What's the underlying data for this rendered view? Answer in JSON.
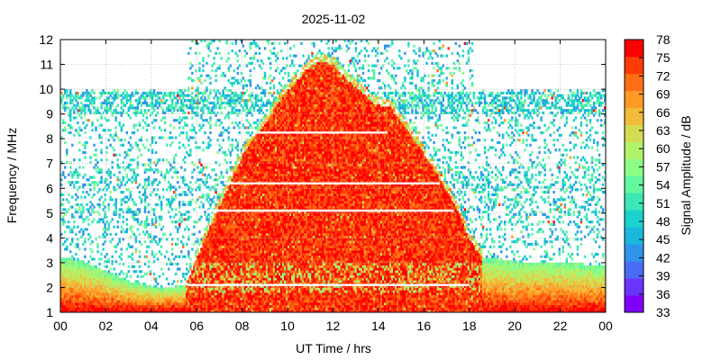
{
  "chart_data": {
    "type": "heatmap",
    "title": "2025-11-02",
    "xlabel": "UT Time / hrs",
    "ylabel": "Frequency / MHz",
    "colorbar_label": "Signal Amplitude / dB",
    "xlim": [
      0,
      24
    ],
    "ylim": [
      1,
      12
    ],
    "x_ticks": [
      "00",
      "02",
      "04",
      "06",
      "08",
      "10",
      "12",
      "14",
      "16",
      "18",
      "20",
      "22",
      "00"
    ],
    "y_ticks": [
      1,
      2,
      3,
      4,
      5,
      6,
      7,
      8,
      9,
      10,
      11,
      12
    ],
    "colorbar_ticks": [
      33,
      36,
      39,
      42,
      45,
      48,
      51,
      54,
      57,
      60,
      63,
      66,
      69,
      72,
      75,
      78
    ],
    "colorbar_range": [
      33,
      78
    ],
    "colors": [
      "#8000ff",
      "#6a34fc",
      "#4a6bf3",
      "#2f94ea",
      "#19b9dd",
      "#1ad3cc",
      "#3de8b7",
      "#63f7a0",
      "#8cfe85",
      "#b2f26b",
      "#d4dc52",
      "#f2bc3a",
      "#ff9a25",
      "#ff6e14",
      "#ff3b07",
      "#ff0000"
    ],
    "grid": true,
    "series": [
      {
        "name": "",
        "description_free": true,
        "daytime_region_upper_freq_mhz": [
          [
            5.5,
            2.0
          ],
          [
            6.0,
            3.2
          ],
          [
            6.5,
            4.3
          ],
          [
            7.0,
            5.3
          ],
          [
            7.5,
            6.3
          ],
          [
            8.0,
            7.3
          ],
          [
            8.5,
            8.0
          ],
          [
            9.0,
            8.6
          ],
          [
            9.5,
            9.3
          ],
          [
            10.0,
            9.9
          ],
          [
            10.5,
            10.4
          ],
          [
            11.0,
            10.9
          ],
          [
            11.5,
            11.1
          ],
          [
            12.0,
            10.9
          ],
          [
            12.5,
            10.4
          ],
          [
            13.0,
            10.0
          ],
          [
            13.5,
            9.6
          ],
          [
            14.0,
            9.3
          ],
          [
            14.5,
            9.2
          ],
          [
            15.0,
            8.6
          ],
          [
            15.5,
            8.0
          ],
          [
            16.0,
            7.3
          ],
          [
            16.5,
            6.6
          ],
          [
            17.0,
            5.8
          ],
          [
            17.5,
            5.0
          ],
          [
            18.0,
            3.8
          ],
          [
            18.5,
            3.2
          ]
        ],
        "night_region_upper_freq_mhz": [
          [
            0,
            3.2
          ],
          [
            1,
            3.0
          ],
          [
            2,
            2.6
          ],
          [
            3,
            2.2
          ],
          [
            4,
            2.0
          ],
          [
            5,
            2.0
          ],
          [
            18.5,
            3.2
          ],
          [
            20,
            3.0
          ],
          [
            22,
            3.0
          ],
          [
            24,
            2.8
          ]
        ]
      }
    ]
  }
}
